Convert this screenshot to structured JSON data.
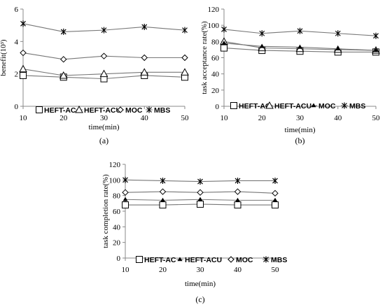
{
  "chart_data": [
    {
      "type": "line",
      "caption": "(a)",
      "xlabel": "time(min)",
      "ylabel": "benefit(10³)",
      "x": [
        10,
        20,
        30,
        40,
        50
      ],
      "xlim": [
        10,
        50
      ],
      "ylim": [
        0,
        6
      ],
      "yticks": [
        0,
        2,
        4,
        6
      ],
      "grid": false,
      "legend": "bottom",
      "series": [
        {
          "name": "HEFT-AC",
          "marker": "square",
          "values": [
            1.9,
            1.8,
            1.7,
            1.9,
            1.8
          ]
        },
        {
          "name": "HEFT-ACU",
          "marker": "triangle",
          "values": [
            2.3,
            1.9,
            2.0,
            2.1,
            2.1
          ]
        },
        {
          "name": "MOC",
          "marker": "diamond",
          "values": [
            3.3,
            2.9,
            3.1,
            3.0,
            3.0
          ]
        },
        {
          "name": "MBS",
          "marker": "star",
          "values": [
            5.1,
            4.6,
            4.7,
            4.9,
            4.7
          ]
        }
      ]
    },
    {
      "type": "line",
      "caption": "(b)",
      "xlabel": "time(min)",
      "ylabel": "task  acceptance rate(%)",
      "x": [
        10,
        20,
        30,
        40,
        50
      ],
      "xlim": [
        10,
        50
      ],
      "ylim": [
        0,
        120
      ],
      "yticks": [
        0,
        20,
        40,
        60,
        80,
        100,
        120
      ],
      "grid": false,
      "legend": "bottom",
      "series": [
        {
          "name": "HEFT-AC",
          "marker": "square",
          "values": [
            72,
            69,
            68,
            67,
            67
          ]
        },
        {
          "name": "HEFT-ACU",
          "marker": "triangle",
          "values": [
            80,
            72,
            71,
            70,
            69
          ]
        },
        {
          "name": "MOC",
          "marker": "dot",
          "values": [
            78,
            74,
            73,
            71,
            69
          ]
        },
        {
          "name": "MBS",
          "marker": "star",
          "values": [
            95,
            90,
            93,
            90,
            87
          ]
        }
      ]
    },
    {
      "type": "line",
      "caption": "(c)",
      "xlabel": "time(min)",
      "ylabel": "task completion rate(%)",
      "x": [
        10,
        20,
        30,
        40,
        50
      ],
      "xlim": [
        10,
        50
      ],
      "ylim": [
        0,
        120
      ],
      "yticks": [
        0,
        20,
        40,
        60,
        80,
        100,
        120
      ],
      "grid": false,
      "legend": "bottom",
      "series": [
        {
          "name": "HEFT-AC",
          "marker": "square",
          "values": [
            68,
            68,
            69,
            68,
            68
          ]
        },
        {
          "name": "HEFT-ACU",
          "marker": "dot",
          "values": [
            75,
            74,
            75,
            74,
            74
          ]
        },
        {
          "name": "MOC",
          "marker": "diamond",
          "values": [
            84,
            85,
            84,
            85,
            83
          ]
        },
        {
          "name": "MBS",
          "marker": "star",
          "values": [
            100,
            99,
            98,
            99,
            99
          ]
        }
      ]
    }
  ]
}
